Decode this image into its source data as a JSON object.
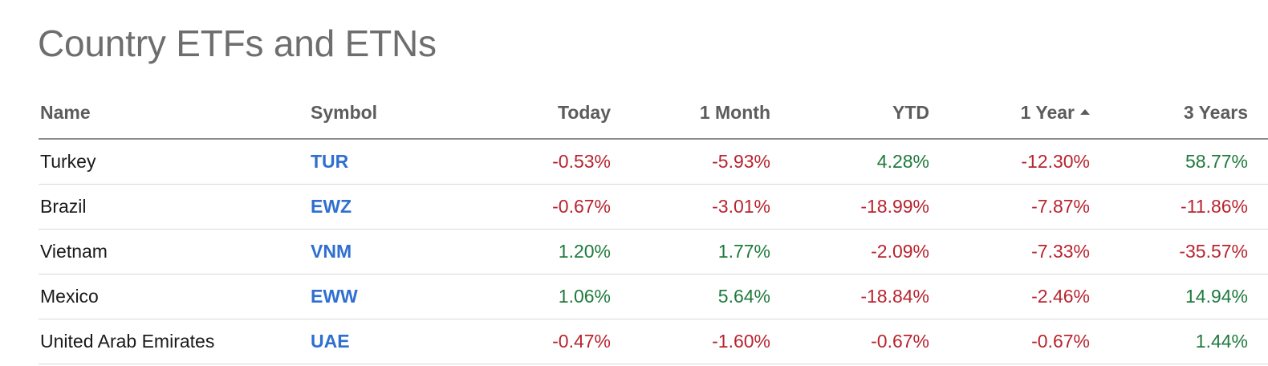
{
  "page": {
    "title": "Country ETFs and ETNs"
  },
  "table": {
    "headers": {
      "name": "Name",
      "symbol": "Symbol",
      "today": "Today",
      "one_month": "1 Month",
      "ytd": "YTD",
      "one_year": "1 Year",
      "three_years": "3 Years"
    },
    "sort": {
      "column": "1 Year",
      "direction": "ascending",
      "icon": "sort-ascending-icon"
    },
    "rows": [
      {
        "name": "Turkey",
        "symbol": "TUR",
        "today": "-0.53%",
        "one_month": "-5.93%",
        "ytd": "4.28%",
        "one_year": "-12.30%",
        "three_years": "58.77%"
      },
      {
        "name": "Brazil",
        "symbol": "EWZ",
        "today": "-0.67%",
        "one_month": "-3.01%",
        "ytd": "-18.99%",
        "one_year": "-7.87%",
        "three_years": "-11.86%"
      },
      {
        "name": "Vietnam",
        "symbol": "VNM",
        "today": "1.20%",
        "one_month": "1.77%",
        "ytd": "-2.09%",
        "one_year": "-7.33%",
        "three_years": "-35.57%"
      },
      {
        "name": "Mexico",
        "symbol": "EWW",
        "today": "1.06%",
        "one_month": "5.64%",
        "ytd": "-18.84%",
        "one_year": "-2.46%",
        "three_years": "14.94%"
      },
      {
        "name": "United Arab Emirates",
        "symbol": "UAE",
        "today": "-0.47%",
        "one_month": "-1.60%",
        "ytd": "-0.67%",
        "one_year": "-0.67%",
        "three_years": "1.44%"
      }
    ]
  },
  "colors": {
    "positive": "#1f7a3d",
    "negative": "#b8242f",
    "link": "#2f6fd0",
    "title": "#6e6e6e"
  }
}
